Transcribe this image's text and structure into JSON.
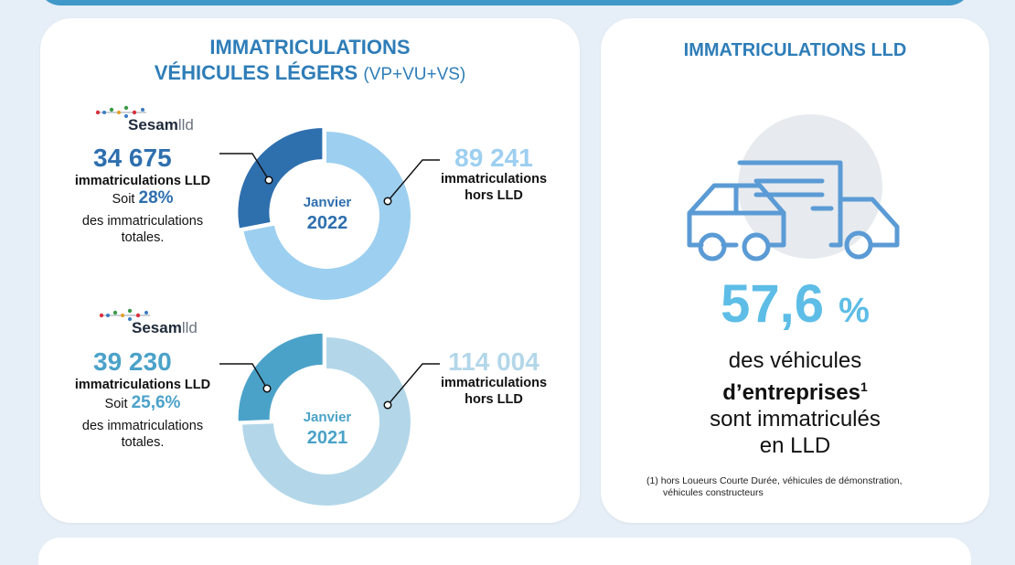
{
  "colors": {
    "accent_dark": "#2e6fae",
    "accent_light_2022": "#9dcff0",
    "accent_2021": "#4ba2c9",
    "accent_light_2021": "#b3d7e9",
    "stat_blue": "#5dbde6",
    "title_blue": "#2e7db8"
  },
  "left_card": {
    "title_line1": "IMMATRICULATIONS",
    "title_line2": "VÉHICULES LÉGERS",
    "title_suffix": "(VP+VU+VS)",
    "logo_word": "Sesam",
    "logo_suffix": "lld"
  },
  "chart_data": [
    {
      "type": "pie",
      "center_label": "Janvier",
      "center_year": "2022",
      "labels": [
        "immatriculations LLD",
        "immatriculations hors LLD"
      ],
      "values": [
        34675,
        89241
      ],
      "lld": {
        "value_text": "34 675",
        "label": "immatriculations LLD",
        "soit": "Soit",
        "share_text": "28%",
        "share_caption_1": "des immatriculations",
        "share_caption_2": "totales."
      },
      "hors": {
        "value_text": "89 241",
        "label_1": "immatriculations",
        "label_2": "hors LLD"
      },
      "colors": [
        "#2e6fae",
        "#9dcff0"
      ]
    },
    {
      "type": "pie",
      "center_label": "Janvier",
      "center_year": "2021",
      "labels": [
        "immatriculations LLD",
        "immatriculations hors LLD"
      ],
      "values": [
        39230,
        114004
      ],
      "lld": {
        "value_text": "39 230",
        "label": "immatriculations LLD",
        "soit": "Soit",
        "share_text": "25,6%",
        "share_caption_1": "des immatriculations",
        "share_caption_2": "totales."
      },
      "hors": {
        "value_text": "114 004",
        "label_1": "immatriculations",
        "label_2": "hors LLD"
      },
      "colors": [
        "#4ba2c9",
        "#b3d7e9"
      ]
    }
  ],
  "right_card": {
    "title": "IMMATRICULATIONS LLD",
    "icon": "vehicles-icon",
    "stat_value": "57,6",
    "stat_unit": "%",
    "desc_line1": "des véhicules",
    "desc_line2": "d’entreprises",
    "desc_sup": "1",
    "desc_line3": "sont immatriculés",
    "desc_line4": "en LLD",
    "footnote_line1": "(1) hors Loueurs Courte Durée, véhicules de démonstration,",
    "footnote_line2": "véhicules constructeurs"
  }
}
